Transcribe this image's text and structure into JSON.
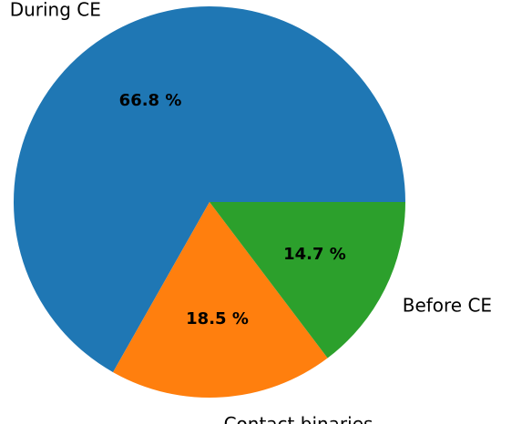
{
  "chart_data": {
    "type": "pie",
    "title": "",
    "start_angle_deg": 0,
    "direction": "counterclockwise",
    "legend": "none",
    "slices": [
      {
        "label": "During CE",
        "value": 66.8,
        "value_label": "66.8 %",
        "color": "#1f77b4"
      },
      {
        "label": "Contact binaries",
        "value": 18.5,
        "value_label": "18.5 %",
        "color": "#ff7f0e"
      },
      {
        "label": "Before CE",
        "value": 14.7,
        "value_label": "14.7 %",
        "color": "#2ca02c"
      }
    ]
  }
}
